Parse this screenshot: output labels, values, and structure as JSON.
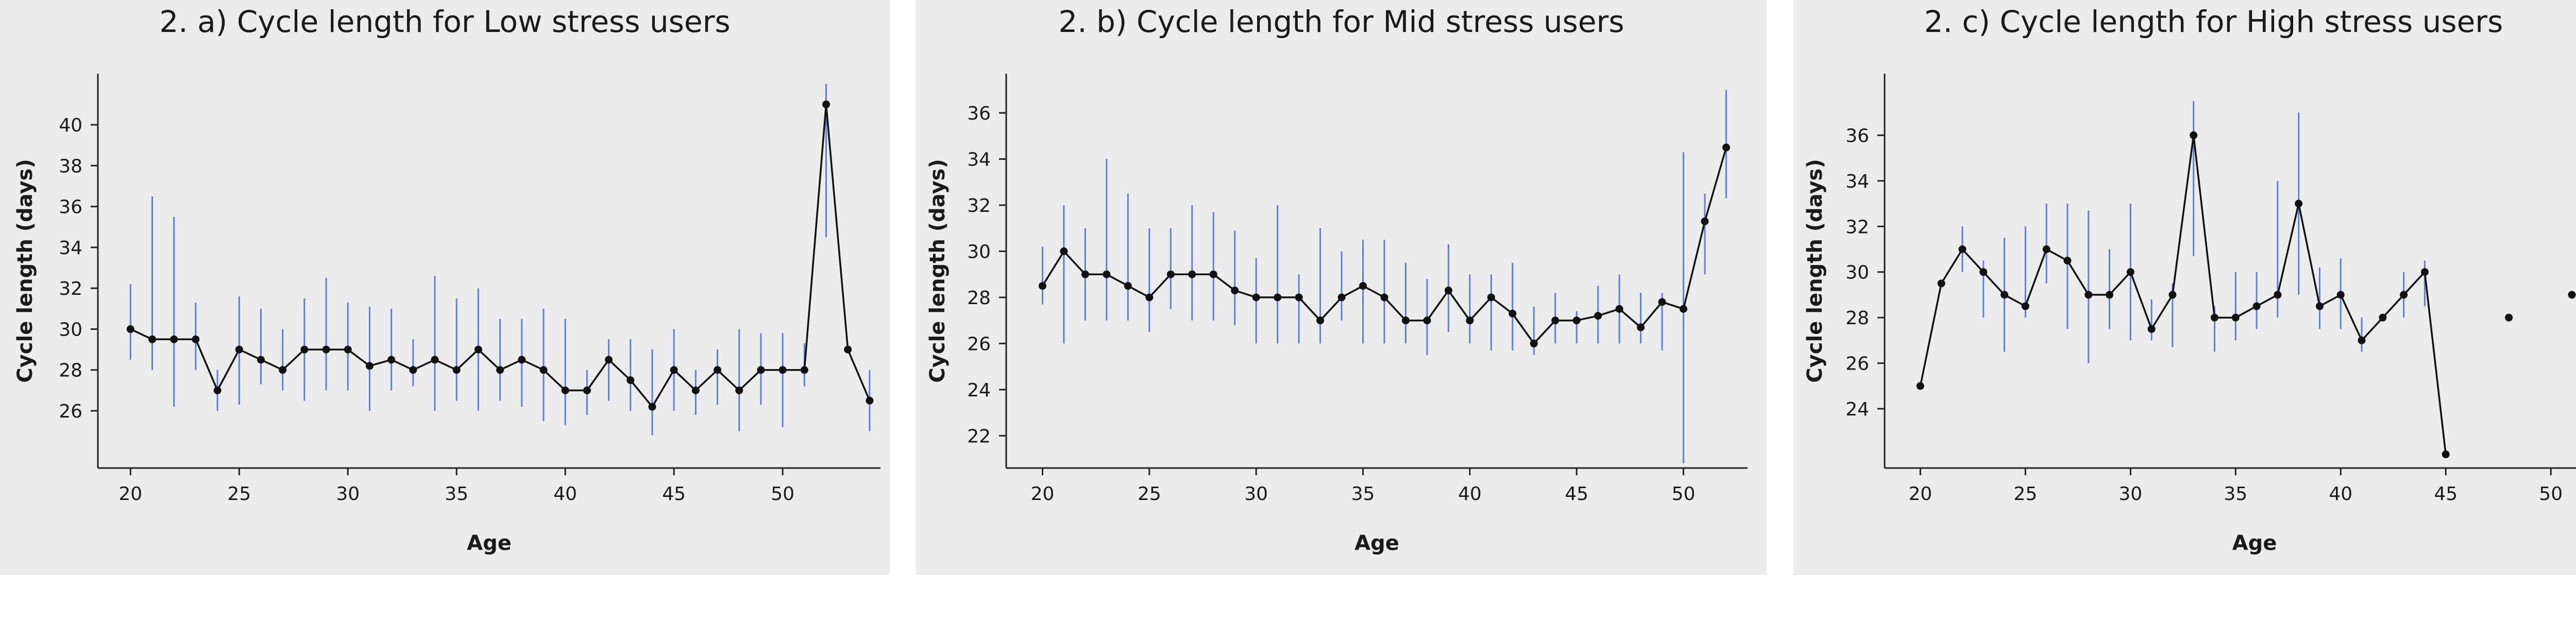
{
  "chart_data": [
    {
      "type": "line",
      "title": "2. a) Cycle length for Low stress users",
      "xlabel": "Age",
      "ylabel": "Cycle length (days)",
      "xlim": [
        18.5,
        54.5
      ],
      "ylim": [
        23.2,
        42.5
      ],
      "xticks": [
        20,
        25,
        30,
        35,
        40,
        45,
        50
      ],
      "yticks": [
        26,
        28,
        30,
        32,
        34,
        36,
        38,
        40
      ],
      "grid": false,
      "colors": {
        "line": "#111111",
        "errorbar": "#5b7fe0"
      },
      "series": [
        {
          "x": [
            20,
            21,
            22,
            23,
            24,
            25,
            26,
            27,
            28,
            29,
            30,
            31,
            32,
            33,
            34,
            35,
            36,
            37,
            38,
            39,
            40,
            41,
            42,
            43,
            44,
            45,
            46,
            47,
            48,
            49,
            50,
            51,
            52,
            53,
            54
          ],
          "y": [
            30,
            29.5,
            29.5,
            29.5,
            27,
            29,
            28.5,
            28,
            29,
            29,
            29,
            28.2,
            28.5,
            28,
            28.5,
            28,
            29,
            28,
            28.5,
            28,
            27,
            27,
            28.5,
            27.5,
            26.2,
            28,
            27,
            28,
            27,
            28,
            28,
            28,
            41,
            29,
            26.5
          ],
          "err_low": [
            28.5,
            28,
            26.2,
            28,
            26,
            26.3,
            27.3,
            27,
            26.5,
            27,
            27,
            26,
            27,
            27.2,
            26,
            26.5,
            26,
            26.5,
            26.2,
            25.5,
            25.3,
            25.8,
            26.5,
            26,
            24.8,
            26,
            25.8,
            26.3,
            25,
            26.3,
            25.2,
            27.2,
            34.5,
            29,
            25
          ],
          "err_high": [
            32.2,
            36.5,
            35.5,
            31.3,
            28,
            31.6,
            31,
            30,
            31.5,
            32.5,
            31.3,
            31.1,
            31,
            29.5,
            32.6,
            31.5,
            32,
            30.5,
            30.5,
            31,
            30.5,
            28,
            29.5,
            29.5,
            29,
            30,
            28,
            29,
            30,
            29.8,
            29.8,
            29.3,
            42,
            29,
            28
          ]
        }
      ]
    },
    {
      "type": "line",
      "title": "2. b) Cycle length for Mid stress users",
      "xlabel": "Age",
      "ylabel": "Cycle length (days)",
      "xlim": [
        18.3,
        53
      ],
      "ylim": [
        20.6,
        37.7
      ],
      "xticks": [
        20,
        25,
        30,
        35,
        40,
        45,
        50
      ],
      "yticks": [
        22,
        24,
        26,
        28,
        30,
        32,
        34,
        36
      ],
      "grid": false,
      "colors": {
        "line": "#111111",
        "errorbar": "#5b7fe0"
      },
      "series": [
        {
          "x": [
            20,
            21,
            22,
            23,
            24,
            25,
            26,
            27,
            28,
            29,
            30,
            31,
            32,
            33,
            34,
            35,
            36,
            37,
            38,
            39,
            40,
            41,
            42,
            43,
            44,
            45,
            46,
            47,
            48,
            49,
            50,
            51,
            52
          ],
          "y": [
            28.5,
            30,
            29,
            29,
            28.5,
            28,
            29,
            29,
            29,
            28.3,
            28,
            28,
            28,
            27,
            28,
            28.5,
            28,
            27,
            27,
            28.3,
            27,
            28,
            27.3,
            26,
            27,
            27,
            27.2,
            27.5,
            26.7,
            27.8,
            27.5,
            31.3,
            34.5
          ],
          "err_low": [
            27.7,
            26,
            27,
            27,
            27,
            26.5,
            27.5,
            27,
            27,
            26.8,
            26,
            26,
            26,
            26,
            27,
            26,
            26,
            26,
            25.5,
            26.5,
            26,
            25.7,
            25.7,
            25.5,
            26,
            26,
            26,
            26,
            26,
            25.7,
            20.8,
            29,
            32.3
          ],
          "err_high": [
            30.2,
            32,
            31,
            34,
            32.5,
            31,
            31,
            32,
            31.7,
            30.9,
            29.7,
            32,
            29,
            31,
            30,
            30.5,
            30.5,
            29.5,
            28.8,
            30.3,
            29,
            29,
            29.5,
            27.6,
            28.2,
            27.4,
            28.5,
            29,
            28.2,
            28.2,
            34.3,
            32.5,
            37
          ]
        }
      ]
    },
    {
      "type": "line",
      "title": "2. c) Cycle length for High stress users",
      "xlabel": "Age",
      "ylabel": "Cycle length (days)",
      "xlim": [
        18.3,
        53.5
      ],
      "ylim": [
        21.4,
        38.7
      ],
      "xticks": [
        20,
        25,
        30,
        35,
        40,
        45,
        50
      ],
      "yticks": [
        24,
        26,
        28,
        30,
        32,
        34,
        36
      ],
      "grid": false,
      "colors": {
        "line": "#111111",
        "errorbar": "#5b7fe0"
      },
      "series": [
        {
          "x": [
            20,
            21,
            22,
            23,
            24,
            25,
            26,
            27,
            28,
            29,
            30,
            31,
            32,
            33,
            34,
            35,
            36,
            37,
            38,
            39,
            40,
            41,
            42,
            43,
            44,
            45
          ],
          "y": [
            25,
            29.5,
            31,
            30,
            29,
            28.5,
            31,
            30.5,
            29,
            29,
            30,
            27.5,
            29,
            36,
            28,
            28,
            28.5,
            29,
            33,
            28.5,
            29,
            27,
            28,
            29,
            30,
            22
          ],
          "err_low": [
            25,
            29.5,
            30,
            28,
            26.5,
            28,
            29.5,
            27.5,
            26,
            27.5,
            27,
            27,
            26.7,
            30.7,
            26.5,
            27,
            27.5,
            28,
            29,
            27.5,
            27.5,
            26.5,
            28,
            28,
            28.5,
            22
          ],
          "err_high": [
            25,
            29.5,
            32,
            30.5,
            31.5,
            32,
            33,
            33,
            32.7,
            31,
            33,
            28.8,
            29.5,
            37.5,
            28.5,
            30,
            30,
            34,
            37,
            30.2,
            30.6,
            28,
            28,
            30,
            30.5,
            22
          ]
        },
        {
          "x": [
            48,
            51
          ],
          "y": [
            28,
            29
          ],
          "err_low": [
            28,
            29
          ],
          "err_high": [
            28,
            29
          ]
        }
      ]
    }
  ]
}
